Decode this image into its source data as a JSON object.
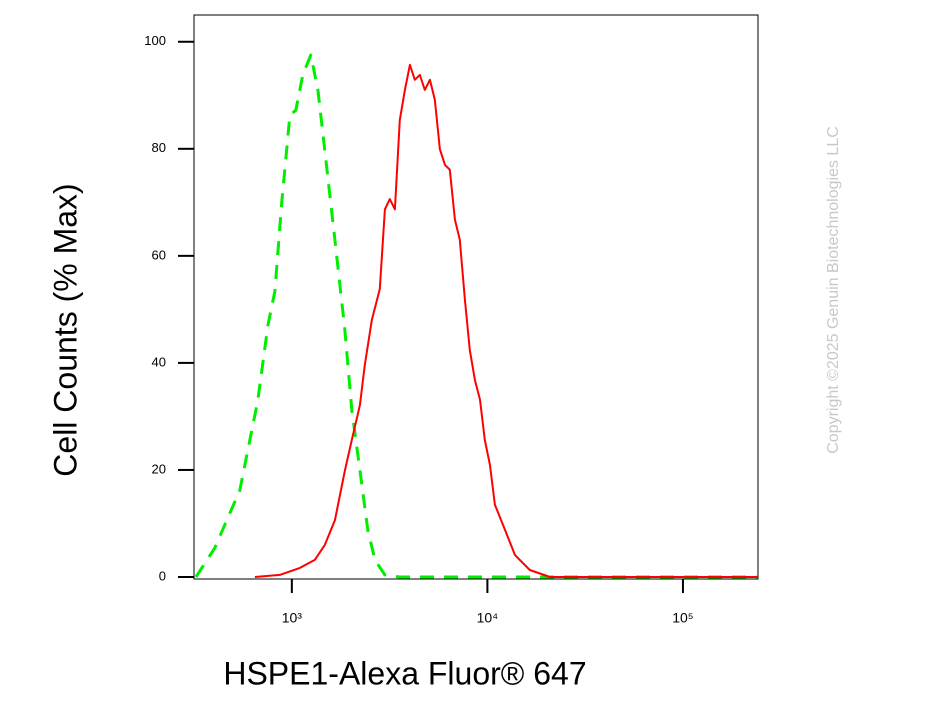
{
  "chart_data": {
    "type": "line",
    "ylabel": "Cell Counts (% Max)",
    "xlabel": "HSPE1-Alexa Fluor® 647",
    "annotation": "Copyright ©2025 Genuin Biotechnologies LLC",
    "xscale": "log",
    "xlim": [
      316,
      242000
    ],
    "ylim": [
      0,
      105
    ],
    "xticks": [
      {
        "value": 1000,
        "label": "10³"
      },
      {
        "value": 10000,
        "label": "10⁴"
      },
      {
        "value": 100000,
        "label": "10⁵"
      }
    ],
    "yticks": [
      0,
      20,
      40,
      60,
      80,
      100
    ],
    "series": [
      {
        "color": "#00ee00",
        "dashed": true,
        "x": [
          323,
          403,
          542,
          670,
          754,
          819,
          889,
          977,
          1048,
          1138,
          1250,
          1359,
          1475,
          1660,
          1866,
          2027,
          2228,
          2447,
          2659,
          2991,
          3567,
          20900,
          242000
        ],
        "values": [
          0,
          5.4,
          16.2,
          33.0,
          47.0,
          53.4,
          70.1,
          86.3,
          87.2,
          93.8,
          97.5,
          91.0,
          79.7,
          63.0,
          46.3,
          31.2,
          20.0,
          8.8,
          3.2,
          0.4,
          0,
          0,
          0
        ]
      },
      {
        "color": "#ff0000",
        "dashed": false,
        "x": [
          647,
          868,
          1099,
          1311,
          1475,
          1660,
          1866,
          2027,
          2228,
          2361,
          2564,
          2818,
          2991,
          3170,
          3365,
          3567,
          3785,
          4015,
          4256,
          4518,
          4786,
          5082,
          5383,
          5715,
          6067,
          6427,
          6823,
          7228,
          7674,
          8128,
          8630,
          9162,
          9705,
          10300,
          10920,
          12300,
          13840,
          16480,
          20900,
          37600,
          242000
        ],
        "values": [
          0,
          0.4,
          1.7,
          3.2,
          6.0,
          10.6,
          19.8,
          25.6,
          32.1,
          39.6,
          48.0,
          53.8,
          68.7,
          70.6,
          68.7,
          85.4,
          91.0,
          95.7,
          92.9,
          93.8,
          91.0,
          92.9,
          89.2,
          79.9,
          77.0,
          76.1,
          66.8,
          63.0,
          51.8,
          42.4,
          36.8,
          33.1,
          25.6,
          21.0,
          13.5,
          8.8,
          4.1,
          1.3,
          0,
          0,
          0
        ]
      }
    ]
  }
}
